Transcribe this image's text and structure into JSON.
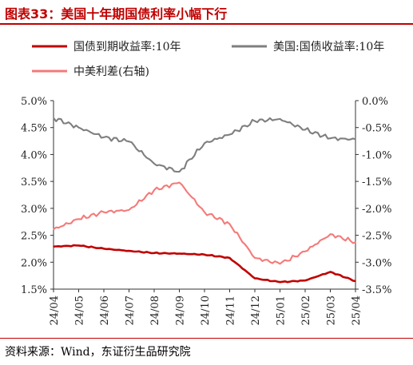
{
  "title": "图表33：美国十年期国债利率小幅下行",
  "source": "资料来源：Wind，东证衍生品研究院",
  "chart_data": {
    "type": "line",
    "title": "图表33：美国十年期国债利率小幅下行",
    "x": [
      "24/04",
      "24/05",
      "24/06",
      "24/07",
      "24/08",
      "24/09",
      "24/10",
      "24/11",
      "24/12",
      "25/01",
      "25/02",
      "25/03",
      "25/04"
    ],
    "left_ylim": [
      1.5,
      5.0
    ],
    "right_ylim": [
      -3.5,
      0.0
    ],
    "left_yticks": [
      "1.5%",
      "2.0%",
      "2.5%",
      "3.0%",
      "3.5%",
      "4.0%",
      "4.5%",
      "5.0%"
    ],
    "right_yticks": [
      "-3.5%",
      "-3.0%",
      "-2.5%",
      "-2.0%",
      "-1.5%",
      "-1.0%",
      "-0.5%",
      "0.0%"
    ],
    "legend_placement": "top",
    "grid": false,
    "series": [
      {
        "name": "国债到期收益率:10年",
        "color": "#c00000",
        "axis": "left",
        "values": [
          2.29,
          2.31,
          2.25,
          2.21,
          2.17,
          2.16,
          2.14,
          2.08,
          1.7,
          1.63,
          1.66,
          1.82,
          1.65
        ]
      },
      {
        "name": "美国:国债收益率:10年",
        "color": "#7f7f7f",
        "axis": "left",
        "values": [
          4.68,
          4.5,
          4.32,
          4.24,
          3.83,
          3.68,
          4.21,
          4.37,
          4.62,
          4.66,
          4.46,
          4.3,
          4.28
        ]
      },
      {
        "name": "中美利差(右轴)",
        "color": "#f47a7a",
        "axis": "right",
        "values": [
          -2.39,
          -2.2,
          -2.07,
          -2.03,
          -1.66,
          -1.52,
          -2.07,
          -2.29,
          -2.92,
          -3.03,
          -2.8,
          -2.48,
          -2.63
        ]
      }
    ]
  }
}
